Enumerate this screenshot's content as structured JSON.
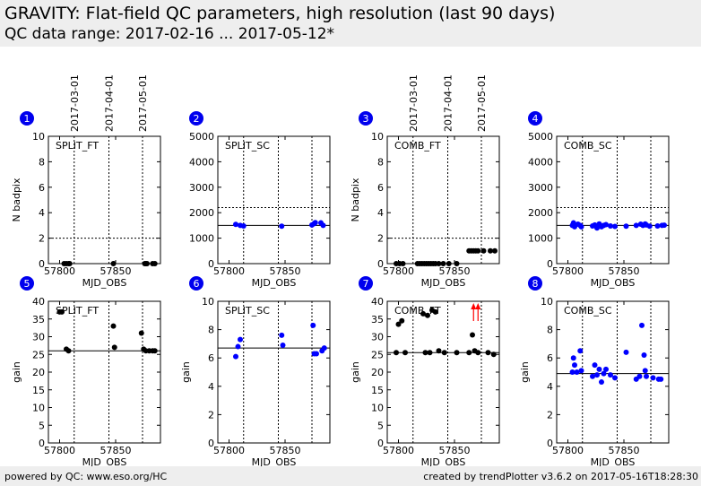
{
  "header": {
    "title": "GRAVITY: Flat-field QC parameters, high resolution (last 90 days)",
    "subtitle": "QC data range: 2017-02-16 ... 2017-05-12*"
  },
  "footer": {
    "left": "powered by QC: www.eso.org/HC",
    "right": "created by trendPlotter v3.6.2 on 2017-05-16T18:28:30"
  },
  "date_markers": [
    {
      "label": "2017-03-01",
      "mjd": 57813
    },
    {
      "label": "2017-04-01",
      "mjd": 57844
    },
    {
      "label": "2017-05-01",
      "mjd": 57874
    }
  ],
  "colors": {
    "black_series": "#000000",
    "blue_series": "#0000ff",
    "badge": "#0000ee",
    "outlier_arrow": "#ff0000"
  },
  "chart_data": [
    {
      "index": "1",
      "type": "scatter",
      "label": "SPLIT_FT",
      "xlabel": "MJD_OBS",
      "ylabel": "N badpix",
      "xlim": [
        57790,
        57890
      ],
      "ylim": [
        0,
        10
      ],
      "yticks": [
        0,
        2,
        4,
        6,
        8,
        10
      ],
      "xticks": [
        57800,
        57850
      ],
      "reference": null,
      "threshold": 2,
      "color": "#000000",
      "x": [
        57804,
        57806,
        57808,
        57809,
        57848,
        57876,
        57877,
        57878,
        57883,
        57885
      ],
      "y": [
        0,
        0,
        0,
        0,
        0,
        0,
        0,
        0,
        0,
        0
      ],
      "outliers": []
    },
    {
      "index": "2",
      "type": "scatter",
      "label": "SPLIT_SC",
      "xlabel": "MJD_OBS",
      "ylabel": "",
      "xlim": [
        57790,
        57890
      ],
      "ylim": [
        0,
        5000
      ],
      "yticks": [
        0,
        1000,
        2000,
        3000,
        4000,
        5000
      ],
      "xticks": [
        57800,
        57850
      ],
      "reference": 1500,
      "threshold": 2200,
      "color": "#0000ff",
      "x": [
        57806,
        57810,
        57813,
        57847,
        57874,
        57876,
        57877,
        57882,
        57884
      ],
      "y": [
        1540,
        1500,
        1480,
        1470,
        1520,
        1570,
        1610,
        1600,
        1500
      ],
      "outliers": []
    },
    {
      "index": "3",
      "type": "scatter",
      "label": "COMB_FT",
      "xlabel": "MJD_OBS",
      "ylabel": "N badpix",
      "xlim": [
        57790,
        57890
      ],
      "ylim": [
        0,
        10
      ],
      "yticks": [
        0,
        2,
        4,
        6,
        8,
        10
      ],
      "xticks": [
        57800,
        57850
      ],
      "reference": null,
      "threshold": 2,
      "color": "#000000",
      "x": [
        57798,
        57801,
        57804,
        57817,
        57819,
        57821,
        57823,
        57825,
        57827,
        57829,
        57831,
        57833,
        57836,
        57840,
        57845,
        57852,
        57863,
        57865,
        57867,
        57869,
        57871,
        57876,
        57882,
        57886
      ],
      "y": [
        0,
        0,
        0,
        0,
        0,
        0,
        0,
        0,
        0,
        0,
        0,
        0,
        0,
        0,
        0,
        0,
        1,
        1,
        1,
        1,
        1,
        1,
        1,
        1
      ],
      "outliers": []
    },
    {
      "index": "4",
      "type": "scatter",
      "label": "COMB_SC",
      "xlabel": "MJD_OBS",
      "ylabel": "",
      "xlim": [
        57790,
        57890
      ],
      "ylim": [
        0,
        5000
      ],
      "yticks": [
        0,
        1000,
        2000,
        3000,
        4000,
        5000
      ],
      "xticks": [
        57800,
        57850
      ],
      "reference": 1500,
      "threshold": 2200,
      "color": "#0000ff",
      "x": [
        57804,
        57805,
        57806,
        57809,
        57811,
        57812,
        57822,
        57824,
        57826,
        57828,
        57830,
        57832,
        57834,
        57838,
        57842,
        57852,
        57861,
        57865,
        57867,
        57869,
        57870,
        57873,
        57880,
        57884,
        57886
      ],
      "y": [
        1500,
        1600,
        1450,
        1550,
        1500,
        1450,
        1480,
        1520,
        1400,
        1560,
        1450,
        1500,
        1530,
        1480,
        1460,
        1470,
        1500,
        1550,
        1500,
        1560,
        1520,
        1470,
        1480,
        1500,
        1510
      ],
      "outliers": []
    },
    {
      "index": "5",
      "type": "scatter",
      "label": "SPLIT_FT",
      "xlabel": "MJD_OBS",
      "ylabel": "gain",
      "xlim": [
        57790,
        57890
      ],
      "ylim": [
        0,
        40
      ],
      "yticks": [
        0,
        5,
        10,
        15,
        20,
        25,
        30,
        35,
        40
      ],
      "xticks": [
        57800,
        57850
      ],
      "reference": 26,
      "threshold": null,
      "color": "#000000",
      "x": [
        57800,
        57802,
        57806,
        57808,
        57848,
        57849,
        57873,
        57875,
        57877,
        57880,
        57883,
        57885
      ],
      "y": [
        37,
        37,
        26.5,
        26,
        33,
        27,
        31,
        26.5,
        26,
        26,
        26,
        26
      ],
      "outliers": []
    },
    {
      "index": "6",
      "type": "scatter",
      "label": "SPLIT_SC",
      "xlabel": "MJD_OBS",
      "ylabel": "gain",
      "xlim": [
        57790,
        57890
      ],
      "ylim": [
        0,
        10
      ],
      "yticks": [
        0,
        2,
        4,
        6,
        8,
        10
      ],
      "xticks": [
        57800,
        57850
      ],
      "reference": 6.7,
      "threshold": null,
      "color": "#0000ff",
      "x": [
        57806,
        57808,
        57810,
        57847,
        57848,
        57875,
        57876,
        57878,
        57883,
        57885
      ],
      "y": [
        6.1,
        6.8,
        7.3,
        7.6,
        6.9,
        8.3,
        6.3,
        6.3,
        6.5,
        6.7
      ],
      "outliers": []
    },
    {
      "index": "7",
      "type": "scatter",
      "label": "COMB_FT",
      "xlabel": "MJD_OBS",
      "ylabel": "gain",
      "xlim": [
        57790,
        57890
      ],
      "ylim": [
        0,
        40
      ],
      "yticks": [
        0,
        5,
        10,
        15,
        20,
        25,
        30,
        35,
        40
      ],
      "xticks": [
        57800,
        57850
      ],
      "reference": 25.5,
      "threshold": null,
      "color": "#000000",
      "x": [
        57798,
        57800,
        57803,
        57806,
        57822,
        57824,
        57826,
        57828,
        57830,
        57833,
        57836,
        57841,
        57852,
        57863,
        57866,
        57868,
        57871,
        57880,
        57885
      ],
      "y": [
        25.5,
        33.5,
        34.5,
        25.5,
        36.5,
        25.5,
        36,
        25.5,
        37.5,
        37,
        26,
        25.5,
        25.5,
        25.5,
        30.5,
        26,
        25.5,
        25.5,
        25
      ],
      "outliers": [
        57867,
        57871
      ]
    },
    {
      "index": "8",
      "type": "scatter",
      "label": "COMB_SC",
      "xlabel": "MJD_OBS",
      "ylabel": "gain",
      "xlim": [
        57790,
        57890
      ],
      "ylim": [
        0,
        10
      ],
      "yticks": [
        0,
        2,
        4,
        6,
        8,
        10
      ],
      "xticks": [
        57800,
        57850
      ],
      "reference": 4.9,
      "threshold": null,
      "color": "#0000ff",
      "x": [
        57804,
        57805,
        57806,
        57808,
        57811,
        57812,
        57822,
        57824,
        57826,
        57828,
        57830,
        57832,
        57834,
        57838,
        57842,
        57852,
        57861,
        57864,
        57866,
        57868,
        57869,
        57870,
        57876,
        57881,
        57883
      ],
      "y": [
        5,
        6,
        5.5,
        5,
        6.5,
        5.1,
        4.7,
        5.5,
        4.8,
        5.2,
        4.3,
        4.9,
        5.2,
        4.8,
        4.6,
        6.4,
        4.5,
        4.7,
        8.3,
        6.2,
        5.1,
        4.7,
        4.6,
        4.5,
        4.5
      ],
      "outliers": []
    }
  ]
}
